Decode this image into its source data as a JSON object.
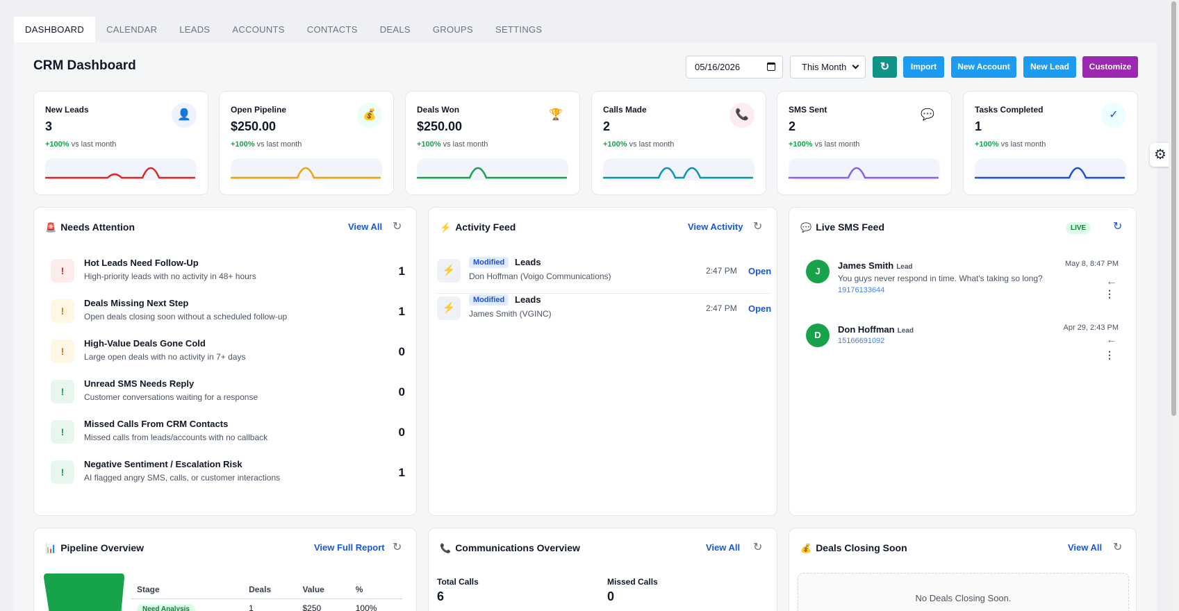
{
  "tabs": [
    "DASHBOARD",
    "CALENDAR",
    "LEADS",
    "ACCOUNTS",
    "CONTACTS",
    "DEALS",
    "GROUPS",
    "SETTINGS"
  ],
  "header": {
    "title": "CRM Dashboard",
    "date_value": "05/16/2026",
    "period": "This Month",
    "refresh_icon": "↻",
    "import_label": "Import",
    "new_account_label": "New Account",
    "new_lead_label": "New Lead",
    "customize_label": "Customize"
  },
  "kpis": [
    {
      "label": "New Leads",
      "value": "3",
      "delta": "+100%",
      "delta_suffix": "vs last month",
      "icon": "👤",
      "icon_name": "user-icon",
      "color": "#dc2626",
      "icon_bg": "#eef2ff"
    },
    {
      "label": "Open Pipeline",
      "value": "$250.00",
      "delta": "+100%",
      "delta_suffix": "vs last month",
      "icon": "💰",
      "icon_name": "money-bag-icon",
      "color": "#f59e0b",
      "icon_bg": "#ecfdf5"
    },
    {
      "label": "Deals Won",
      "value": "$250.00",
      "delta": "+100%",
      "delta_suffix": "vs last month",
      "icon": "🏆",
      "icon_name": "trophy-icon",
      "color": "#16a34a",
      "icon_bg": "#ffffff"
    },
    {
      "label": "Calls Made",
      "value": "2",
      "delta": "+100%",
      "delta_suffix": "vs last month",
      "icon": "📞",
      "icon_name": "phone-icon",
      "color": "#0891b2",
      "icon_bg": "#fdecef"
    },
    {
      "label": "SMS Sent",
      "value": "2",
      "delta": "+100%",
      "delta_suffix": "vs last month",
      "icon": "💬",
      "icon_name": "chat-icon",
      "color": "#8b5cf6",
      "icon_bg": "#ffffff"
    },
    {
      "label": "Tasks Completed",
      "value": "1",
      "delta": "+100%",
      "delta_suffix": "vs last month",
      "icon": "✓",
      "icon_name": "check-icon",
      "color": "#1d4ed8",
      "icon_bg": "#ecfeff"
    }
  ],
  "needs_attention": {
    "title": "Needs Attention",
    "view_all": "View All",
    "items": [
      {
        "title": "Hot Leads Need Follow-Up",
        "desc": "High-priority leads with no activity in 48+ hours",
        "count": "1",
        "badge_bg": "#fdecec",
        "badge_color": "#dc2626"
      },
      {
        "title": "Deals Missing Next Step",
        "desc": "Open deals closing soon without a scheduled follow-up",
        "count": "1",
        "badge_bg": "#fef7e6",
        "badge_color": "#d97706"
      },
      {
        "title": "High-Value Deals Gone Cold",
        "desc": "Large open deals with no activity in 7+ days",
        "count": "0",
        "badge_bg": "#fef7e6",
        "badge_color": "#d97706"
      },
      {
        "title": "Unread SMS Needs Reply",
        "desc": "Customer conversations waiting for a response",
        "count": "0",
        "badge_bg": "#e8f7ee",
        "badge_color": "#16a34a"
      },
      {
        "title": "Missed Calls From CRM Contacts",
        "desc": "Missed calls from leads/accounts with no callback",
        "count": "0",
        "badge_bg": "#e8f7ee",
        "badge_color": "#16a34a"
      },
      {
        "title": "Negative Sentiment / Escalation Risk",
        "desc": "AI flagged angry SMS, calls, or customer interactions",
        "count": "1",
        "badge_bg": "#e8f7ee",
        "badge_color": "#16a34a"
      }
    ]
  },
  "activity_feed": {
    "title": "Activity Feed",
    "view_link": "View Activity",
    "items": [
      {
        "tag": "Modified",
        "type": "Leads",
        "sub": "Don Hoffman (Voigo Communications)",
        "time": "2:47 PM",
        "action": "Open"
      },
      {
        "tag": "Modified",
        "type": "Leads",
        "sub": "James Smith (VGINC)",
        "time": "2:47 PM",
        "action": "Open"
      }
    ]
  },
  "sms_feed": {
    "title": "Live SMS Feed",
    "live_label": "LIVE",
    "items": [
      {
        "initial": "J",
        "name": "James Smith",
        "tag": "Lead",
        "date": "May 8, 8:47 PM",
        "message": "You guys never respond in time. What's taking so long?",
        "phone": "19176133644"
      },
      {
        "initial": "D",
        "name": "Don Hoffman",
        "tag": "Lead",
        "date": "Apr 29, 2:43 PM",
        "message": "",
        "phone": "15166691092"
      }
    ]
  },
  "pipeline": {
    "title": "Pipeline Overview",
    "view_link": "View Full Report",
    "columns": [
      "Stage",
      "Deals",
      "Value",
      "%"
    ],
    "rows": [
      {
        "stage": "Need Analysis",
        "deals": "1",
        "value": "$250",
        "pct": "100%"
      }
    ]
  },
  "communications": {
    "title": "Communications Overview",
    "view_link": "View All",
    "total_calls_label": "Total Calls",
    "total_calls": "6",
    "missed_calls_label": "Missed Calls",
    "missed_calls": "0"
  },
  "deals_closing": {
    "title": "Deals Closing Soon",
    "view_link": "View All",
    "empty_text": "No Deals Closing Soon."
  }
}
